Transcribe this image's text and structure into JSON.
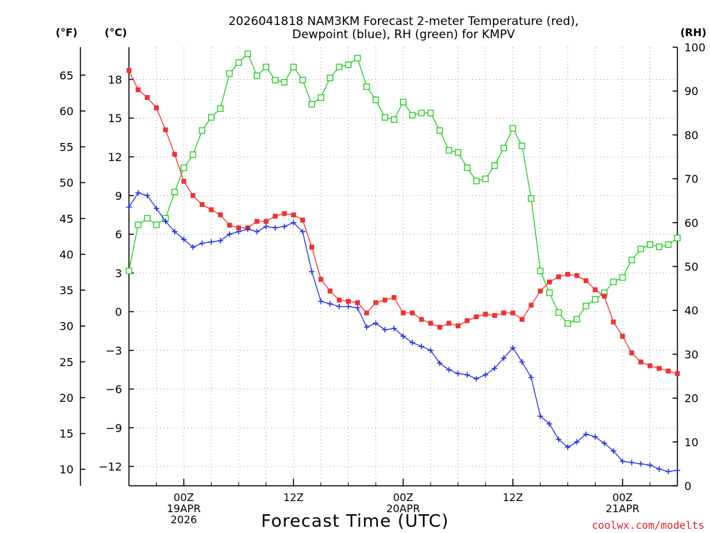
{
  "chart_data": {
    "type": "line",
    "title_line1": "2026041818 NAM3KM Forecast 2-meter Temperature (red),",
    "title_line2": "Dewpoint (blue), RH (green) for KMPV",
    "xlabel": "Forecast Time (UTC)",
    "credit": "coolwx.com/modelts",
    "unit_labels": {
      "fahrenheit": "(°F)",
      "celsius": "(°C)",
      "rh": "(RH)"
    },
    "x_hours_range": [
      0,
      60
    ],
    "celsius_range": [
      -13.5,
      20.5
    ],
    "rh_range": [
      0,
      100
    ],
    "fahrenheit_ticks": [
      "10",
      "15",
      "20",
      "25",
      "30",
      "35",
      "40",
      "45",
      "50",
      "55",
      "60",
      "65"
    ],
    "fahrenheit_tick_values": [
      10,
      15,
      20,
      25,
      30,
      35,
      40,
      45,
      50,
      55,
      60,
      65
    ],
    "celsius_ticks": [
      "−12",
      "−9",
      "−6",
      "−3",
      "0",
      "3",
      "6",
      "9",
      "12",
      "15",
      "18"
    ],
    "celsius_tick_values": [
      -12,
      -9,
      -6,
      -3,
      0,
      3,
      6,
      9,
      12,
      15,
      18
    ],
    "rh_ticks": [
      "0",
      "10",
      "20",
      "30",
      "40",
      "50",
      "60",
      "70",
      "80",
      "90",
      "100"
    ],
    "rh_tick_values": [
      0,
      10,
      20,
      30,
      40,
      50,
      60,
      70,
      80,
      90,
      100
    ],
    "x_ticks": [
      {
        "hour": 6,
        "lines": [
          "00Z",
          "19APR",
          "2026"
        ]
      },
      {
        "hour": 18,
        "lines": [
          "12Z"
        ]
      },
      {
        "hour": 30,
        "lines": [
          "00Z",
          "20APR"
        ]
      },
      {
        "hour": 42,
        "lines": [
          "12Z"
        ]
      },
      {
        "hour": 54,
        "lines": [
          "00Z",
          "21APR"
        ]
      }
    ],
    "series": [
      {
        "name": "2-meter Temperature",
        "units": "°C",
        "color": "#ee3333",
        "marker": "filled-square",
        "values": [
          18.7,
          17.2,
          16.6,
          15.8,
          14.1,
          12.2,
          10.1,
          9.0,
          8.3,
          7.9,
          7.5,
          6.7,
          6.5,
          6.5,
          7.0,
          7.0,
          7.4,
          7.6,
          7.5,
          7.1,
          5.0,
          2.5,
          1.6,
          0.9,
          0.8,
          0.7,
          -0.1,
          0.7,
          0.9,
          1.1,
          -0.1,
          -0.1,
          -0.6,
          -0.9,
          -1.2,
          -0.9,
          -1.1,
          -0.7,
          -0.4,
          -0.2,
          -0.3,
          -0.1,
          -0.1,
          -0.6,
          0.5,
          1.6,
          2.3,
          2.7,
          2.9,
          2.8,
          2.4,
          1.7,
          1.2,
          -0.8,
          -1.9,
          -3.2,
          -3.9,
          -4.2,
          -4.4,
          -4.6,
          -4.8
        ]
      },
      {
        "name": "Dewpoint",
        "units": "°C",
        "color": "#2233dd",
        "marker": "plus",
        "values": [
          8.1,
          9.2,
          9.0,
          8.0,
          7.0,
          6.2,
          5.6,
          5.0,
          5.3,
          5.4,
          5.5,
          6.0,
          6.2,
          6.4,
          6.2,
          6.6,
          6.5,
          6.6,
          6.9,
          6.2,
          3.1,
          0.8,
          0.6,
          0.4,
          0.4,
          0.3,
          -1.2,
          -0.9,
          -1.4,
          -1.3,
          -1.9,
          -2.4,
          -2.7,
          -3.0,
          -4.0,
          -4.5,
          -4.8,
          -4.9,
          -5.2,
          -4.9,
          -4.4,
          -3.6,
          -2.8,
          -3.9,
          -5.1,
          -8.1,
          -8.7,
          -9.9,
          -10.5,
          -10.1,
          -9.5,
          -9.7,
          -10.2,
          -10.8,
          -11.6,
          -11.7,
          -11.8,
          -11.9,
          -12.2,
          -12.4,
          -12.3
        ]
      },
      {
        "name": "Relative Humidity",
        "units": "%",
        "color": "#22cc22",
        "marker": "open-square",
        "values": [
          49,
          59.5,
          61,
          59.5,
          61,
          67,
          72.5,
          75.5,
          81,
          84,
          86,
          94,
          96.5,
          98.5,
          93.5,
          95.5,
          92.5,
          92,
          95.5,
          92.5,
          87,
          88.5,
          93,
          95.5,
          96,
          97.5,
          91,
          88,
          84,
          83.5,
          87.5,
          84.5,
          85,
          85,
          81,
          76.5,
          76,
          72.5,
          69.5,
          70,
          73,
          77,
          81.5,
          77.5,
          65.5,
          49,
          44,
          39.5,
          37,
          38,
          41,
          42.5,
          44,
          46.5,
          47.5,
          51.5,
          54,
          55,
          54.5,
          55,
          56.5
        ]
      }
    ]
  }
}
